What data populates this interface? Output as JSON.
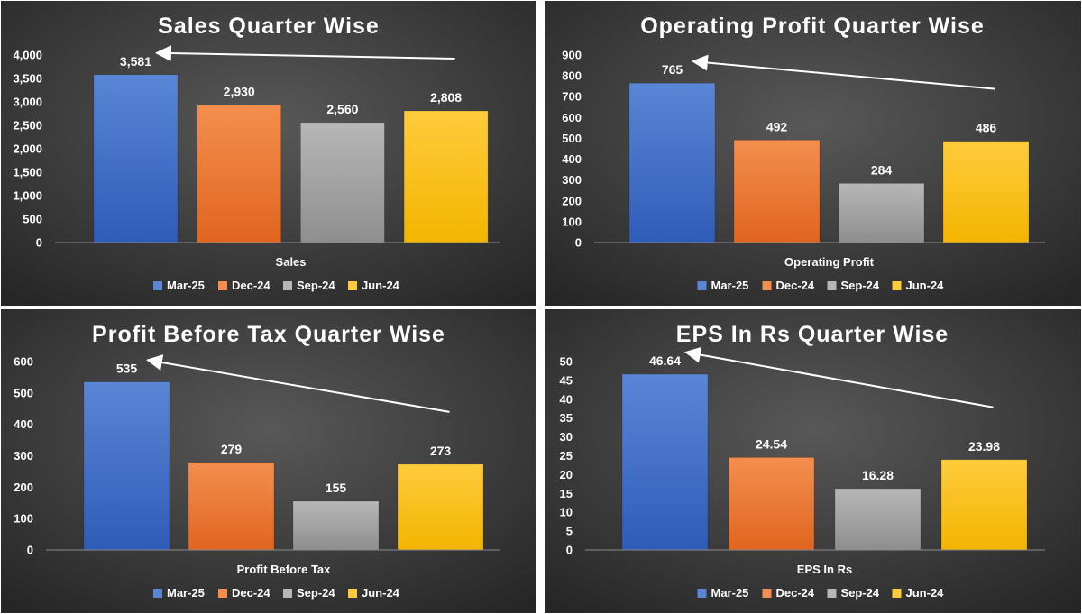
{
  "colors": {
    "mar25_light": "#5a86d6",
    "mar25_dark": "#2f5cb8",
    "dec24_light": "#f48e4e",
    "dec24_dark": "#e0651f",
    "sep24_light": "#b7b7b7",
    "sep24_dark": "#8e8e8e",
    "jun24_light": "#ffcb3c",
    "jun24_dark": "#f3b500",
    "arrow": "#ffffff",
    "bg_center": "#585858",
    "bg_edge": "#262626"
  },
  "legend": [
    {
      "label": "Mar-25",
      "color_key": "mar25"
    },
    {
      "label": "Dec-24",
      "color_key": "dec24"
    },
    {
      "label": "Sep-24",
      "color_key": "sep24"
    },
    {
      "label": "Jun-24",
      "color_key": "jun24"
    }
  ],
  "chart_data": [
    {
      "type": "bar",
      "title": "Sales Quarter Wise",
      "xlabel": "Sales",
      "categories": [
        "Mar-25",
        "Dec-24",
        "Sep-24",
        "Jun-24"
      ],
      "values": [
        3581,
        2930,
        2560,
        2808
      ],
      "value_labels": [
        "3,581",
        "2,930",
        "2,560",
        "2,808"
      ],
      "ylim": [
        0,
        4000
      ],
      "yticks": [
        "0",
        "500",
        "1,000",
        "1,500",
        "2,000",
        "2,500",
        "3,000",
        "3,500",
        "4,000"
      ],
      "arrow": {
        "from": "Jun-24",
        "to": "Mar-25"
      },
      "grid": false,
      "legend_position": "bottom"
    },
    {
      "type": "bar",
      "title": "Operating Profit Quarter Wise",
      "xlabel": "Operating Profit",
      "categories": [
        "Mar-25",
        "Dec-24",
        "Sep-24",
        "Jun-24"
      ],
      "values": [
        765,
        492,
        284,
        486
      ],
      "value_labels": [
        "765",
        "492",
        "284",
        "486"
      ],
      "ylim": [
        0,
        900
      ],
      "yticks": [
        "0",
        "100",
        "200",
        "300",
        "400",
        "500",
        "600",
        "700",
        "800",
        "900"
      ],
      "arrow": {
        "from": "Jun-24",
        "to": "Mar-25"
      },
      "grid": false,
      "legend_position": "bottom"
    },
    {
      "type": "bar",
      "title": "Profit Before Tax Quarter Wise",
      "xlabel": "Profit Before Tax",
      "categories": [
        "Mar-25",
        "Dec-24",
        "Sep-24",
        "Jun-24"
      ],
      "values": [
        535,
        279,
        155,
        273
      ],
      "value_labels": [
        "535",
        "279",
        "155",
        "273"
      ],
      "ylim": [
        0,
        600
      ],
      "yticks": [
        "0",
        "100",
        "200",
        "300",
        "400",
        "500",
        "600"
      ],
      "arrow": {
        "from": "Jun-24",
        "to": "Mar-25"
      },
      "grid": false,
      "legend_position": "bottom"
    },
    {
      "type": "bar",
      "title": "EPS In Rs Quarter Wise",
      "xlabel": "EPS In Rs",
      "categories": [
        "Mar-25",
        "Dec-24",
        "Sep-24",
        "Jun-24"
      ],
      "values": [
        46.64,
        24.54,
        16.28,
        23.98
      ],
      "value_labels": [
        "46.64",
        "24.54",
        "16.28",
        "23.98"
      ],
      "ylim": [
        0,
        50
      ],
      "yticks": [
        "0",
        "5",
        "10",
        "15",
        "20",
        "25",
        "30",
        "35",
        "40",
        "45",
        "50"
      ],
      "arrow": {
        "from": "Jun-24",
        "to": "Mar-25"
      },
      "grid": false,
      "legend_position": "bottom"
    }
  ]
}
